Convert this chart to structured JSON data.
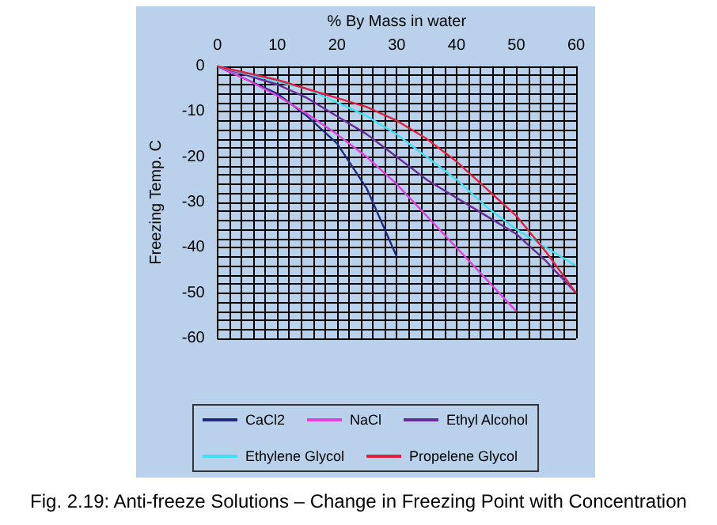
{
  "chart_data": {
    "type": "line",
    "xlabel": "% By Mass in water",
    "ylabel": "Freezing Temp. C",
    "annotations": [
      "Fig. 2.19: Anti-freeze Solutions – Change in Freezing Point with Concentration"
    ],
    "xlim": [
      0,
      60
    ],
    "xticks": [
      0,
      10,
      20,
      30,
      40,
      50,
      60
    ],
    "ylim": [
      -60,
      0
    ],
    "yticks": [
      -60,
      -50,
      -40,
      -30,
      -20,
      -10,
      0
    ],
    "grid": true,
    "legend": "bottom",
    "marker": "none",
    "line_style": "solid",
    "series": [
      {
        "name": "CaCl2",
        "color": "#1f2a80",
        "x": [
          0,
          5,
          10,
          15,
          20,
          25,
          30
        ],
        "values": [
          0,
          -3,
          -6,
          -11,
          -17,
          -27,
          -42
        ]
      },
      {
        "name": "NaCl",
        "color": "#e040e0",
        "x": [
          0,
          5,
          10,
          15,
          20,
          25,
          30,
          35,
          40,
          45,
          50
        ],
        "values": [
          0,
          -3,
          -6.5,
          -10.5,
          -15,
          -20,
          -26,
          -33,
          -40,
          -47,
          -54
        ]
      },
      {
        "name": "Ethyl Alcohol",
        "color": "#6a2a9a",
        "x": [
          0,
          10,
          15,
          20,
          25,
          30,
          35,
          40,
          45,
          50,
          55,
          60
        ],
        "values": [
          0,
          -4,
          -7,
          -11,
          -15,
          -20,
          -25,
          -29,
          -33,
          -37,
          -43,
          -50
        ]
      },
      {
        "name": "Ethylene Glycol",
        "color": "#40e0f0",
        "x": [
          0,
          15,
          20,
          25,
          30,
          35,
          40,
          45,
          50,
          55,
          60
        ],
        "values": [
          0,
          -5,
          -8,
          -11,
          -15,
          -20,
          -25,
          -31,
          -36,
          -40,
          -44
        ]
      },
      {
        "name": "Propelene Glycol",
        "color": "#e02040",
        "x": [
          0,
          10,
          20,
          25,
          30,
          35,
          40,
          45,
          50,
          55,
          60
        ],
        "values": [
          0,
          -3,
          -7,
          -9,
          -12,
          -16,
          -21,
          -27,
          -33,
          -41,
          -50
        ]
      }
    ]
  }
}
